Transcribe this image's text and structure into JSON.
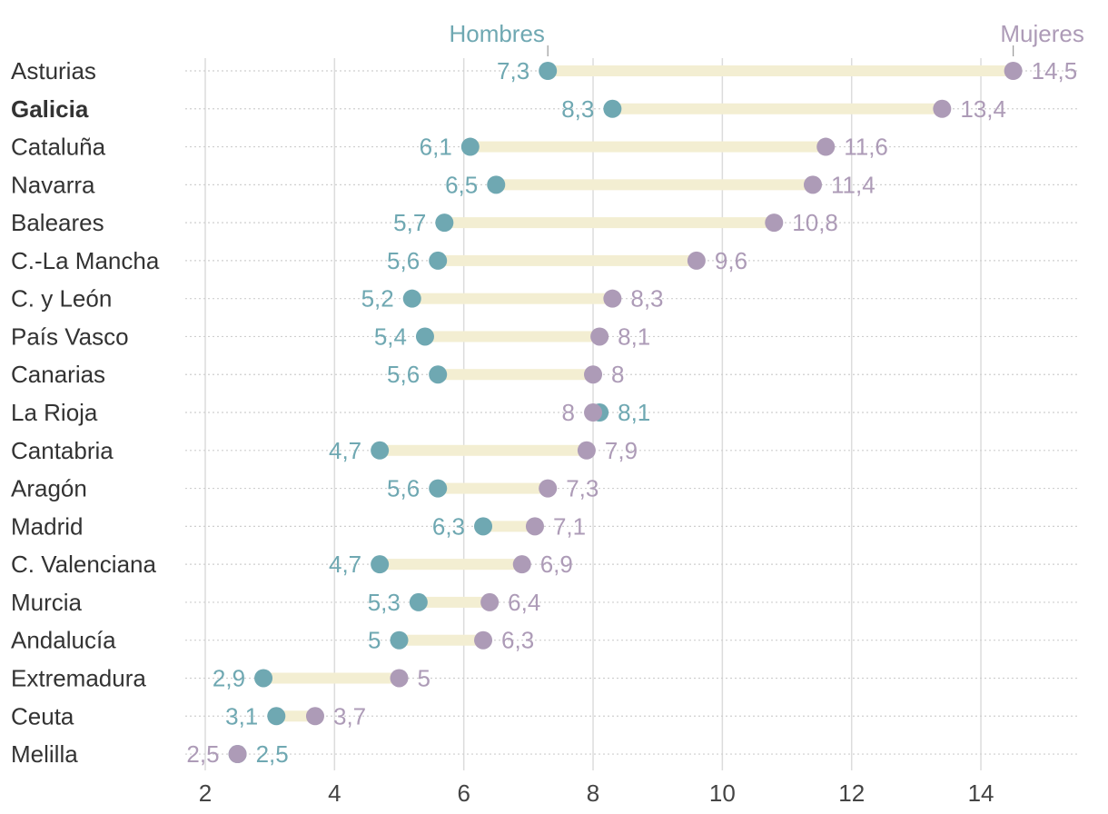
{
  "colors": {
    "men": "#6fa8b2",
    "women": "#ad9bb7",
    "bar": "#f3eed2",
    "grid": "#dcdcdc",
    "dotted": "#cfcfcf",
    "label": "#333333"
  },
  "chart_data": {
    "type": "dumbbell",
    "xlim": [
      2,
      15.3
    ],
    "xticks": [
      "2",
      "4",
      "6",
      "8",
      "10",
      "12",
      "14"
    ],
    "legend": {
      "men": "Hombres",
      "women": "Mujeres"
    },
    "highlight": "Galicia",
    "series": [
      {
        "name": "Hombres",
        "key": "men"
      },
      {
        "name": "Mujeres",
        "key": "women"
      }
    ],
    "rows": [
      {
        "region": "Asturias",
        "men": 7.3,
        "women": 14.5,
        "men_label": "7,3",
        "women_label": "14,5"
      },
      {
        "region": "Galicia",
        "men": 8.3,
        "women": 13.4,
        "men_label": "8,3",
        "women_label": "13,4"
      },
      {
        "region": "Cataluña",
        "men": 6.1,
        "women": 11.6,
        "men_label": "6,1",
        "women_label": "11,6"
      },
      {
        "region": "Navarra",
        "men": 6.5,
        "women": 11.4,
        "men_label": "6,5",
        "women_label": "11,4"
      },
      {
        "region": "Baleares",
        "men": 5.7,
        "women": 10.8,
        "men_label": "5,7",
        "women_label": "10,8"
      },
      {
        "region": "C.-La Mancha",
        "men": 5.6,
        "women": 9.6,
        "men_label": "5,6",
        "women_label": "9,6"
      },
      {
        "region": "C. y León",
        "men": 5.2,
        "women": 8.3,
        "men_label": "5,2",
        "women_label": "8,3"
      },
      {
        "region": "País Vasco",
        "men": 5.4,
        "women": 8.1,
        "men_label": "5,4",
        "women_label": "8,1"
      },
      {
        "region": "Canarias",
        "men": 5.6,
        "women": 8.0,
        "men_label": "5,6",
        "women_label": "8"
      },
      {
        "region": "La Rioja",
        "men": 8.1,
        "women": 8.0,
        "men_label": "8,1",
        "women_label": "8"
      },
      {
        "region": "Cantabria",
        "men": 4.7,
        "women": 7.9,
        "men_label": "4,7",
        "women_label": "7,9"
      },
      {
        "region": "Aragón",
        "men": 5.6,
        "women": 7.3,
        "men_label": "5,6",
        "women_label": "7,3"
      },
      {
        "region": "Madrid",
        "men": 6.3,
        "women": 7.1,
        "men_label": "6,3",
        "women_label": "7,1"
      },
      {
        "region": "C. Valenciana",
        "men": 4.7,
        "women": 6.9,
        "men_label": "4,7",
        "women_label": "6,9"
      },
      {
        "region": "Murcia",
        "men": 5.3,
        "women": 6.4,
        "men_label": "5,3",
        "women_label": "6,4"
      },
      {
        "region": "Andalucía",
        "men": 5.0,
        "women": 6.3,
        "men_label": "5",
        "women_label": "6,3"
      },
      {
        "region": "Extremadura",
        "men": 2.9,
        "women": 5.0,
        "men_label": "2,9",
        "women_label": "5"
      },
      {
        "region": "Ceuta",
        "men": 3.1,
        "women": 3.7,
        "men_label": "3,1",
        "women_label": "3,7"
      },
      {
        "region": "Melilla",
        "men": 2.5,
        "women": 2.5,
        "men_label": "2,5",
        "women_label": "2,5"
      }
    ]
  }
}
